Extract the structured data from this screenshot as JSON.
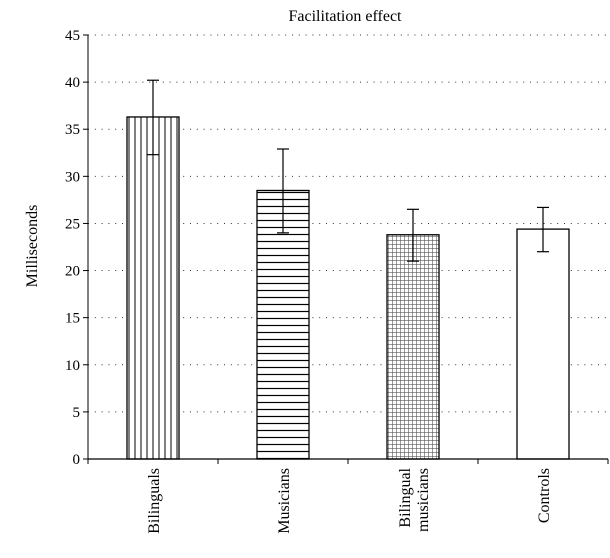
{
  "chart_data": {
    "type": "bar",
    "title": "Facilitation effect",
    "xlabel": "",
    "ylabel": "Milliseconds",
    "ylim": [
      0,
      45
    ],
    "yticks": [
      0,
      5,
      10,
      15,
      20,
      25,
      30,
      35,
      40,
      45
    ],
    "grid": true,
    "categories": [
      [
        "Bilinguals"
      ],
      [
        "Musicians"
      ],
      [
        "Bilingual",
        "musicians"
      ],
      [
        "Controls"
      ]
    ],
    "values": [
      36.3,
      28.5,
      23.8,
      24.4
    ],
    "error_low": [
      32.3,
      24.0,
      21.0,
      22.0
    ],
    "error_high": [
      40.2,
      32.9,
      26.5,
      26.7
    ],
    "patterns": [
      "vertical-lines",
      "horizontal-lines",
      "grid",
      "solid-white"
    ]
  }
}
